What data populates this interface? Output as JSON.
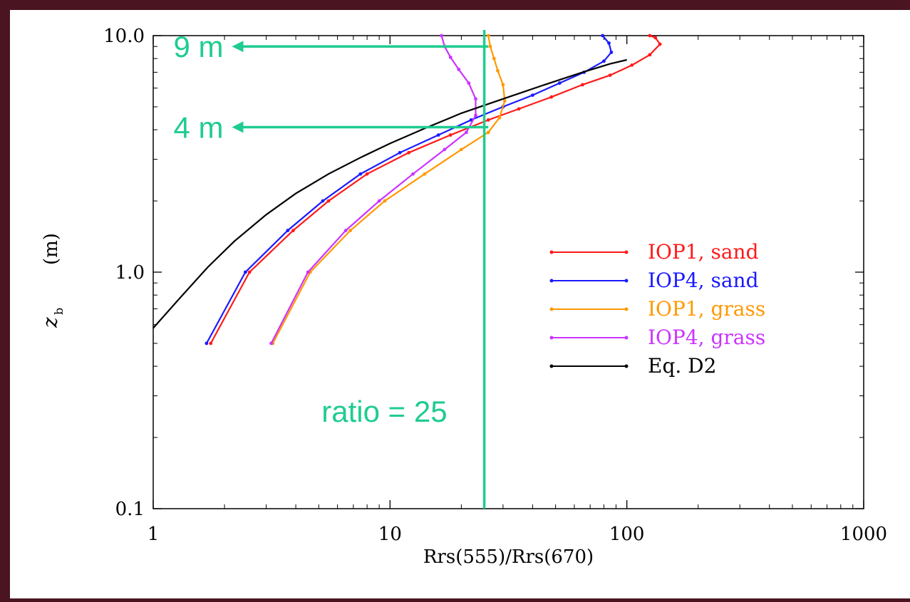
{
  "chart_data": {
    "type": "line",
    "xscale": "log",
    "yscale": "log",
    "xlim": [
      1,
      1000
    ],
    "ylim": [
      0.1,
      10.0
    ],
    "xlabel": "Rrs(555)/Rrs(670)",
    "ylabel_main": "z",
    "ylabel_sub": "b",
    "ylabel_unit": "(m)",
    "xticks": [
      "1",
      "10",
      "100",
      "1000"
    ],
    "yticks": [
      "0.1",
      "1.0",
      "10.0"
    ],
    "legend_position": "center-right",
    "series": [
      {
        "name": "IOP1, sand",
        "color": "#ff1a1a",
        "points": [
          [
            1.75,
            0.5
          ],
          [
            2.55,
            1.0
          ],
          [
            3.9,
            1.5
          ],
          [
            5.5,
            2.0
          ],
          [
            8.0,
            2.6
          ],
          [
            12.0,
            3.2
          ],
          [
            18.0,
            3.8
          ],
          [
            26.0,
            4.4
          ],
          [
            35.0,
            4.9
          ],
          [
            48.0,
            5.5
          ],
          [
            65.0,
            6.2
          ],
          [
            85.0,
            6.8
          ],
          [
            105.0,
            7.5
          ],
          [
            125.0,
            8.3
          ],
          [
            138.0,
            9.2
          ],
          [
            132.0,
            9.8
          ],
          [
            125.0,
            10.0
          ]
        ]
      },
      {
        "name": "IOP4, sand",
        "color": "#1a1aff",
        "points": [
          [
            1.68,
            0.5
          ],
          [
            2.45,
            1.0
          ],
          [
            3.7,
            1.5
          ],
          [
            5.2,
            2.0
          ],
          [
            7.5,
            2.6
          ],
          [
            11.0,
            3.2
          ],
          [
            16.0,
            3.8
          ],
          [
            22.0,
            4.4
          ],
          [
            30.0,
            5.0
          ],
          [
            40.0,
            5.6
          ],
          [
            52.0,
            6.3
          ],
          [
            66.0,
            7.0
          ],
          [
            80.0,
            7.8
          ],
          [
            86.0,
            8.5
          ],
          [
            84.0,
            9.3
          ],
          [
            79.0,
            10.0
          ]
        ]
      },
      {
        "name": "IOP1, grass",
        "color": "#ff9900",
        "points": [
          [
            3.2,
            0.5
          ],
          [
            4.6,
            1.0
          ],
          [
            6.8,
            1.5
          ],
          [
            9.5,
            2.0
          ],
          [
            14.0,
            2.6
          ],
          [
            20.0,
            3.3
          ],
          [
            26.0,
            3.9
          ],
          [
            29.0,
            4.5
          ],
          [
            30.5,
            5.3
          ],
          [
            30.0,
            6.2
          ],
          [
            28.5,
            7.1
          ],
          [
            27.5,
            8.0
          ],
          [
            26.5,
            9.0
          ],
          [
            26.0,
            10.0
          ]
        ]
      },
      {
        "name": "IOP4, grass",
        "color": "#cc33ff",
        "points": [
          [
            3.15,
            0.5
          ],
          [
            4.5,
            1.0
          ],
          [
            6.5,
            1.5
          ],
          [
            9.0,
            2.0
          ],
          [
            12.5,
            2.6
          ],
          [
            17.0,
            3.3
          ],
          [
            21.0,
            3.9
          ],
          [
            23.0,
            4.6
          ],
          [
            23.0,
            5.4
          ],
          [
            21.5,
            6.3
          ],
          [
            19.5,
            7.2
          ],
          [
            18.0,
            8.1
          ],
          [
            17.0,
            9.0
          ],
          [
            16.5,
            10.0
          ]
        ]
      },
      {
        "name": "Eq. D2",
        "color": "#000000",
        "points": [
          [
            1.0,
            0.58
          ],
          [
            1.3,
            0.78
          ],
          [
            1.7,
            1.05
          ],
          [
            2.2,
            1.35
          ],
          [
            3.0,
            1.75
          ],
          [
            4.0,
            2.15
          ],
          [
            5.5,
            2.6
          ],
          [
            7.5,
            3.05
          ],
          [
            10.0,
            3.5
          ],
          [
            14.0,
            4.05
          ],
          [
            20.0,
            4.7
          ],
          [
            30.0,
            5.4
          ],
          [
            45.0,
            6.2
          ],
          [
            65.0,
            7.0
          ],
          [
            85.0,
            7.6
          ],
          [
            100.0,
            7.9
          ]
        ]
      }
    ],
    "annotations": [
      {
        "text": "9 m",
        "x": 26,
        "y": 9.0,
        "arrow_to_x": 2.15
      },
      {
        "text": "4 m",
        "x": 26,
        "y": 4.1,
        "arrow_to_x": 2.15
      },
      {
        "text": "ratio = 25",
        "x": 25
      }
    ],
    "annotation_color": "#1fcc8f"
  }
}
